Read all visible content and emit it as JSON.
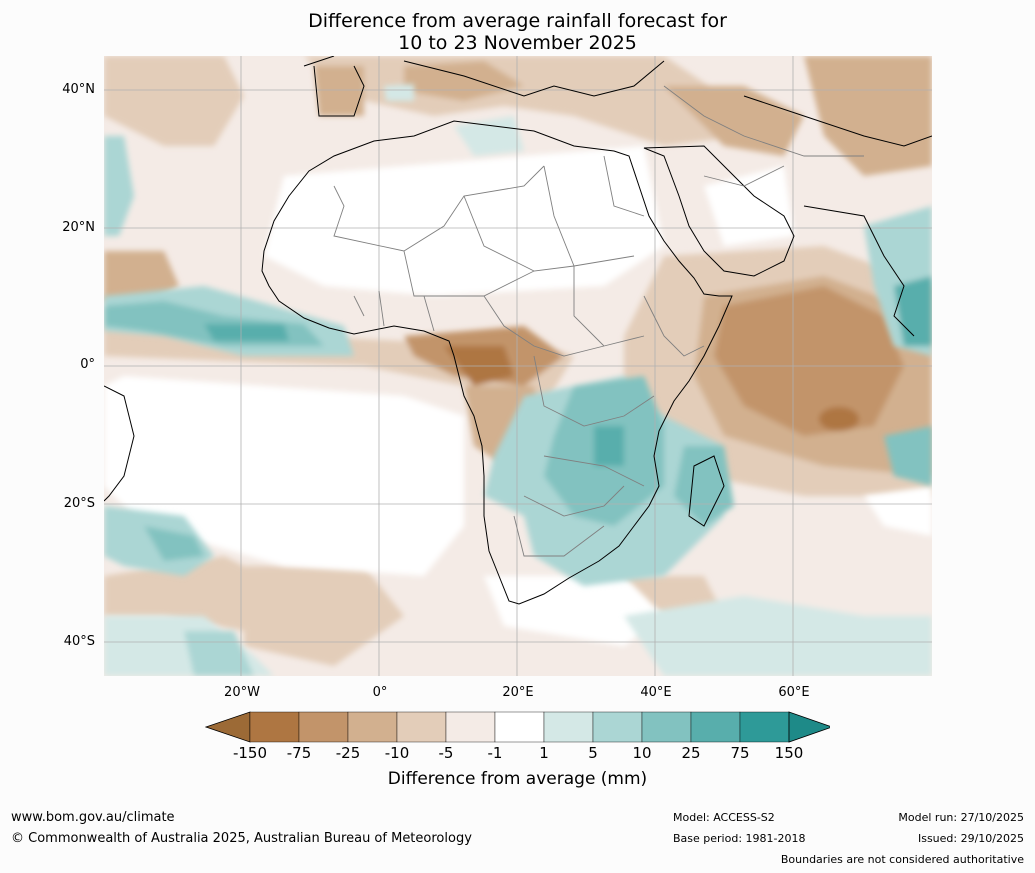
{
  "title": {
    "line1": "Difference from average rainfall forecast for",
    "line2": "10 to 23 November 2025"
  },
  "axes": {
    "lat_labels": [
      "40°N",
      "20°N",
      "0°",
      "20°S",
      "40°S"
    ],
    "lon_labels": [
      "20°W",
      "0°",
      "20°E",
      "40°E",
      "60°E"
    ]
  },
  "legend": {
    "ticks": [
      "-150",
      "-75",
      "-25",
      "-10",
      "-5",
      "-1",
      "1",
      "5",
      "10",
      "25",
      "75",
      "150"
    ],
    "colors": [
      "#9c6a36",
      "#ae7642",
      "#c2946a",
      "#d2b08f",
      "#e3cdb9",
      "#f4ebe6",
      "#ffffff",
      "#d4e8e6",
      "#abd6d4",
      "#82c2c0",
      "#58aeac",
      "#2e9a98",
      "#1e8a88"
    ],
    "title": "Difference from average (mm)"
  },
  "footer": {
    "website": "www.bom.gov.au/climate",
    "copyright": "© Commonwealth of Australia 2025, Australian Bureau of Meteorology",
    "model": "Model: ACCESS-S2",
    "base_period": "Base period: 1981-2018",
    "model_run": "Model run: 27/10/2025",
    "issued": "Issued: 29/10/2025",
    "disclaimer": "Boundaries are not considered authoritative"
  }
}
